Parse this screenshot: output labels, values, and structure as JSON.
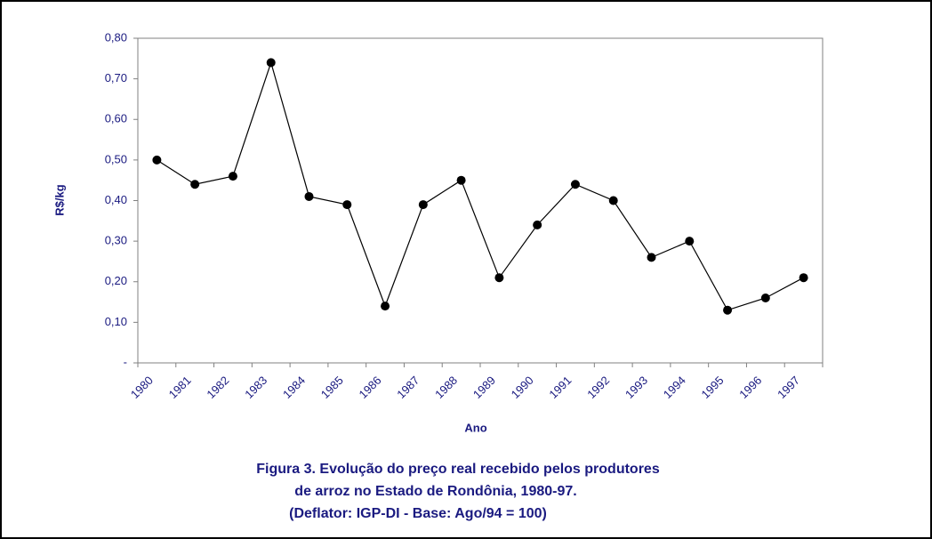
{
  "chart_data": {
    "type": "line",
    "y_label": "R$/kg",
    "x_label": "Ano",
    "caption": [
      "Figura 3. Evolução do preço real recebido pelos produtores",
      "de arroz no Estado de Rondônia, 1980-97.",
      "(Deflator: IGP-DI - Base: Ago/94 = 100)"
    ],
    "categories": [
      "1980",
      "1981",
      "1982",
      "1983",
      "1984",
      "1985",
      "1986",
      "1987",
      "1988",
      "1989",
      "1990",
      "1991",
      "1992",
      "1993",
      "1994",
      "1995",
      "1996",
      "1997"
    ],
    "values": [
      0.5,
      0.44,
      0.46,
      0.74,
      0.41,
      0.39,
      0.14,
      0.39,
      0.45,
      0.21,
      0.34,
      0.44,
      0.4,
      0.26,
      0.3,
      0.13,
      0.16,
      0.21
    ],
    "color": "#000000",
    "ylim": [
      0,
      0.8
    ],
    "yticks": [
      {
        "value": 0,
        "label": "-"
      },
      {
        "value": 0.1,
        "label": "0,10"
      },
      {
        "value": 0.2,
        "label": "0,20"
      },
      {
        "value": 0.3,
        "label": "0,30"
      },
      {
        "value": 0.4,
        "label": "0,40"
      },
      {
        "value": 0.5,
        "label": "0,50"
      },
      {
        "value": 0.6,
        "label": "0,60"
      },
      {
        "value": 0.7,
        "label": "0,70"
      },
      {
        "value": 0.8,
        "label": "0,80"
      }
    ],
    "grid": false
  }
}
